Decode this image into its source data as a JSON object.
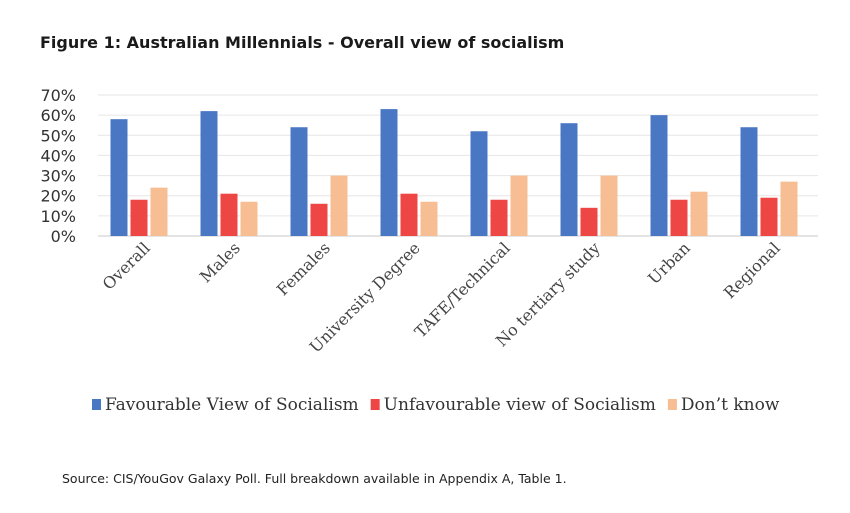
{
  "figure": {
    "title": "Figure 1: Australian Millennials - Overall view of socialism",
    "source": "Source:  CIS/YouGov Galaxy Poll. Full breakdown available in Appendix A, Table 1."
  },
  "chart_data": {
    "type": "bar",
    "title": "Figure 1: Australian Millennials - Overall view of socialism",
    "xlabel": "",
    "ylabel": "",
    "ylim": [
      0,
      70
    ],
    "yticks": [
      "0%",
      "10%",
      "20%",
      "30%",
      "40%",
      "50%",
      "60%",
      "70%"
    ],
    "grid": true,
    "legend_position": "bottom",
    "categories": [
      "Overall",
      "Males",
      "Females",
      "University Degree",
      "TAFE/Technical",
      "No tertiary study",
      "Urban",
      "Regional"
    ],
    "series": [
      {
        "name": "Favourable View of Socialism",
        "color": "#4a77c4",
        "values": [
          58,
          62,
          54,
          63,
          52,
          56,
          60,
          54
        ]
      },
      {
        "name": "Unfavourable view of Socialism",
        "color": "#ee4545",
        "values": [
          18,
          21,
          16,
          21,
          18,
          14,
          18,
          19
        ]
      },
      {
        "name": "Don’t know",
        "color": "#f6be92",
        "values": [
          24,
          17,
          30,
          17,
          30,
          30,
          22,
          27
        ]
      }
    ]
  }
}
